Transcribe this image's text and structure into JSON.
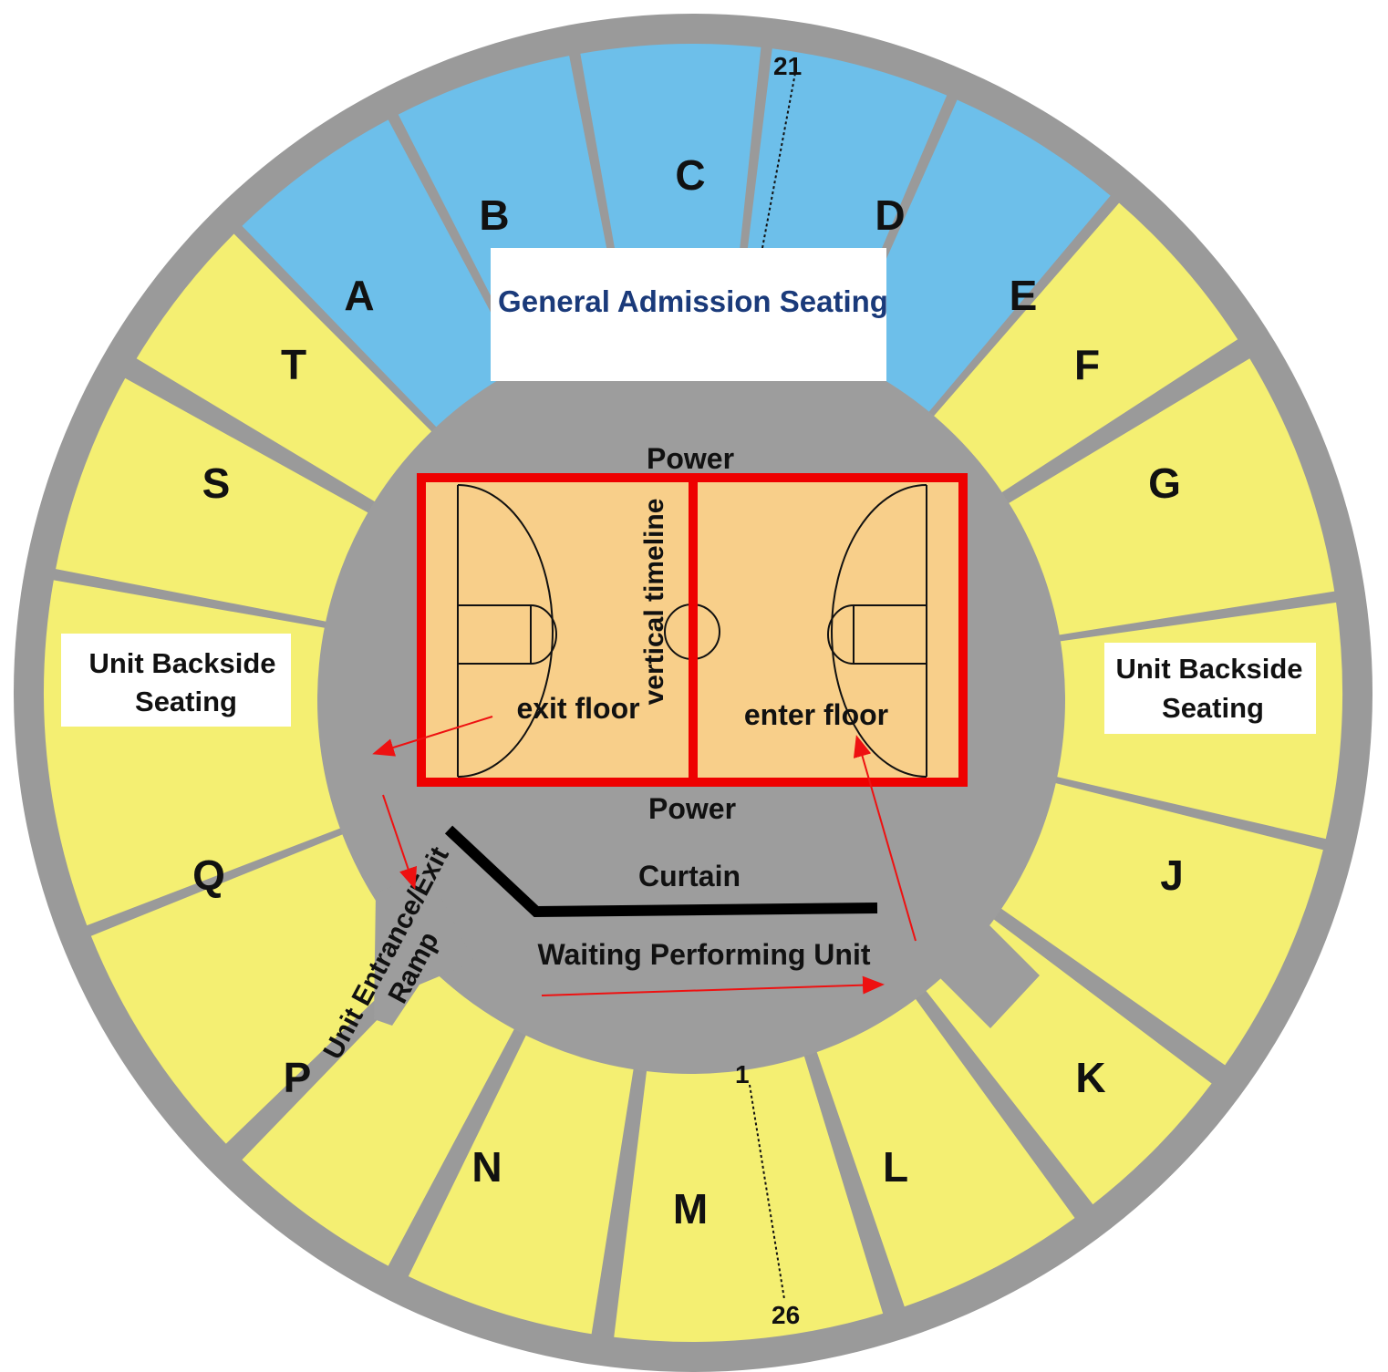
{
  "colors": {
    "outer_ring": "#9a9a9a",
    "inner_floor": "#9d9d9d",
    "general_admission": "#6dbfea",
    "unit_backside": "#f4ef72",
    "court": "#f8cf8a",
    "court_border": "#ee0000",
    "arrow": "#ee1111",
    "curtain": "#000000",
    "ga_text": "#1a3a7a"
  },
  "sections": [
    {
      "letter": "A",
      "type": "general_admission"
    },
    {
      "letter": "B",
      "type": "general_admission"
    },
    {
      "letter": "C",
      "type": "general_admission"
    },
    {
      "letter": "D",
      "type": "general_admission"
    },
    {
      "letter": "E",
      "type": "general_admission"
    },
    {
      "letter": "F",
      "type": "unit_backside"
    },
    {
      "letter": "G",
      "type": "unit_backside"
    },
    {
      "letter": "J",
      "type": "unit_backside"
    },
    {
      "letter": "K",
      "type": "unit_backside"
    },
    {
      "letter": "L",
      "type": "unit_backside"
    },
    {
      "letter": "M",
      "type": "unit_backside"
    },
    {
      "letter": "N",
      "type": "unit_backside"
    },
    {
      "letter": "P",
      "type": "unit_backside"
    },
    {
      "letter": "Q",
      "type": "unit_backside"
    },
    {
      "letter": "S",
      "type": "unit_backside"
    },
    {
      "letter": "T",
      "type": "unit_backside"
    }
  ],
  "labels": {
    "general_admission": "General Admission Seating",
    "unit_backside_left_line1": "Unit Backside",
    "unit_backside_left_line2": "Seating",
    "unit_backside_right_line1": "Unit Backside",
    "unit_backside_right_line2": "Seating",
    "power_top": "Power",
    "power_bottom": "Power",
    "vertical_timeline": "vertical timeline",
    "exit_floor": "exit floor",
    "enter_floor": "enter floor",
    "curtain": "Curtain",
    "waiting_unit": "Waiting Performing Unit",
    "ramp_line1": "Unit Entrance/Exit",
    "ramp_line2": "Ramp",
    "row_top_first": "21",
    "row_bottom_first": "1",
    "row_bottom_last": "26"
  }
}
